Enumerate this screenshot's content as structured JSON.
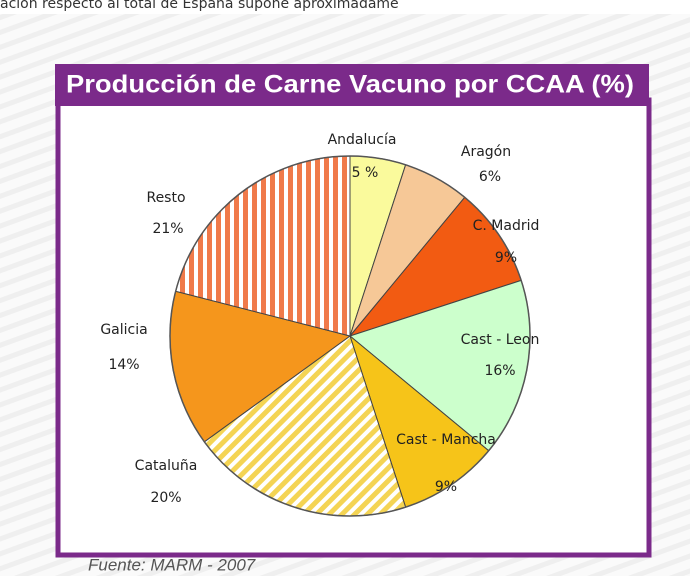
{
  "page_text": "ación respecto al total de España supone aproximadame",
  "chart_data": {
    "type": "pie",
    "title": "Producción de Carne Vacuno por CCAA (%)",
    "categories": [
      "Andalucía",
      "Aragón",
      "C. Madrid",
      "Cast - Leon",
      "Cast - Mancha",
      "Cataluña",
      "Galicia",
      "Resto"
    ],
    "values": [
      5,
      6,
      9,
      16,
      9,
      20,
      14,
      21
    ],
    "value_labels": [
      "5 %",
      "6%",
      "9%",
      "16%",
      "9%",
      "20%",
      "14%",
      "21%"
    ],
    "colors": [
      "#fafa9c",
      "#f6c897",
      "#f25b12",
      "#ccffcc",
      "#f6c419",
      "#f4d454",
      "#f5961c",
      "#f07a4a"
    ],
    "striped": [
      false,
      false,
      false,
      false,
      false,
      true,
      false,
      true
    ],
    "source": "Fuente: MARM - 2007"
  }
}
